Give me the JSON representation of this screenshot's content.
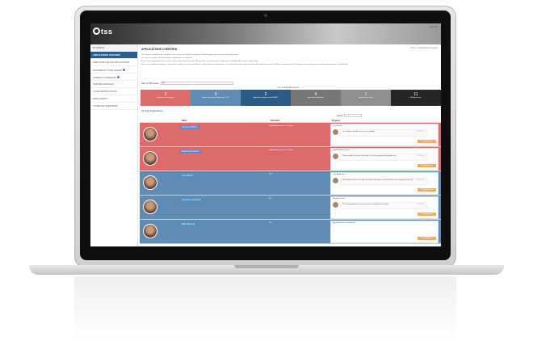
{
  "app": {
    "logo": "tss",
    "user_link": "Log Out",
    "breadcrumb": "Home > Applications Overview"
  },
  "sidebar": {
    "items": [
      {
        "label": "MY PORTAL",
        "state": "home",
        "badge": false
      },
      {
        "label": "APPLICATIONS OVERVIEW",
        "state": "active",
        "badge": false
      },
      {
        "label": "PREVIOUSLY FILLED APPLICATIONS",
        "state": "",
        "badge": false
      },
      {
        "label": "DOCUMENTS TO BE SIGNED",
        "state": "",
        "badge": true
      },
      {
        "label": "FORMS TO COMPLETE",
        "state": "",
        "badge": true
      },
      {
        "label": "TRAINING MODULES",
        "state": "",
        "badge": false
      },
      {
        "label": "YOUR CERTIFICATIONS",
        "state": "",
        "badge": false
      },
      {
        "label": "EMAIL ALERTS",
        "state": "",
        "badge": false
      },
      {
        "label": "SCHEDULE INTERVIEWS",
        "state": "",
        "badge": false
      }
    ]
  },
  "main": {
    "title": "APPLICATIONS OVERVIEW",
    "info": [
      "This page is a dashboard or complete lit of of users, that holding employees, inhabits applications, and potential applications.",
      "You can sort, search, filter and progress applications as required.",
      "If you have a large HR team or various sales entities interacting with TSS all at the same time, you can filter by an individual HR contact's applications.",
      "Click on an individual employee / application in order to go into more details or take actions on applications. The status box on the right hand side will enable you to see at a glance comment on or for progress of an applicant or receiving comments on the application."
    ],
    "filter_label": "Filter by HR Contact:",
    "filter_value": "ALL",
    "tiles_heading": "Your Holding Employees",
    "tiles": [
      {
        "number": "2",
        "label": "Applications Incomplete",
        "color": "#df6a6c"
      },
      {
        "number": "3",
        "label": "Applications Under Review with TSS",
        "color": "#5f8cb2"
      },
      {
        "number": "2",
        "label": "Applications Approved with HMRC",
        "color": "#2c5a86"
      },
      {
        "number": "4",
        "label": "Applications Submitted",
        "color": "#777777"
      },
      {
        "number": "1",
        "label": "Applications Closed",
        "color": "#8f8f8f"
      },
      {
        "number": "11",
        "label": "All Applications",
        "color": "#262626"
      }
    ],
    "section_title": "All Visa Applications",
    "search_label": "Search:",
    "table": {
      "headers": [
        "Name",
        "Start Date",
        "Progress"
      ],
      "rows": [
        {
          "name": "Aberdeen Williams",
          "status": "Eligibility Assessment Pending",
          "progress_title": "Consultation",
          "comment": "Our validation deadline for access is eligibility.",
          "date": "2012-05-01",
          "button": "View Application",
          "color": "red"
        },
        {
          "name": "Belinda Samuelsson",
          "status": "Eligibility Assessment Pending",
          "progress_title": "Eligibility Assessment",
          "comment": "Please provide us with an up to date CV for the purposes the employee has.",
          "date": "2012-05-01",
          "button": "View Application",
          "color": "red"
        },
        {
          "name": "Jesse Brown",
          "status": "RFI",
          "progress_title": "Visa Application",
          "comment": "We will need to discuss whether we need to refer him to send Decision in any category, please call.",
          "date": "2012-05-01",
          "button": "View Application",
          "color": "blue"
        },
        {
          "name": "Jacqueline Koduvalasi",
          "status": "RFI",
          "progress_title": "Working Permit",
          "comment": "The working application has arrived in to a working for the stage.",
          "date": "2012-05-01",
          "button": "View Application",
          "color": "blue"
        },
        {
          "name": "Mark Dalrymple",
          "status": "RFI",
          "progress_title": "Application Sent to Embassy",
          "comment": "",
          "date": "",
          "button": "View Application",
          "color": "blue"
        }
      ]
    }
  },
  "colors": {
    "red_row": "#df6a6c",
    "blue_row": "#5f8cb2",
    "sidebar_active": "#2b5e8f",
    "button": "#f0ad4e"
  }
}
